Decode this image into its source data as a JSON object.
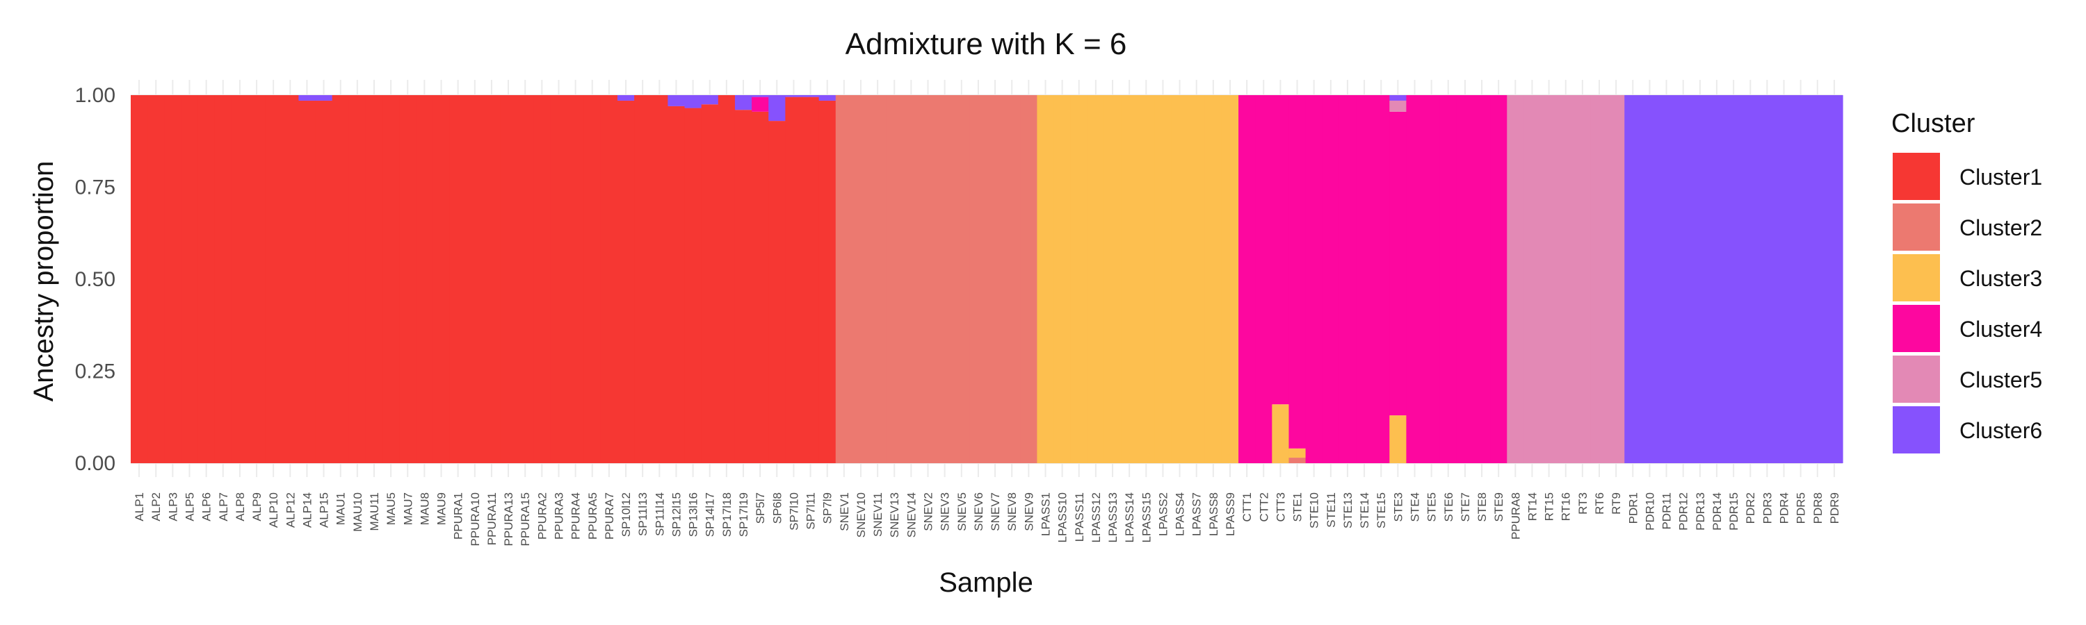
{
  "chart_data": {
    "type": "bar",
    "stacked": true,
    "title": "Admixture with K = 6",
    "xlabel": "Sample",
    "ylabel": "Ancestry proportion",
    "ylim": [
      0,
      1
    ],
    "yticks": [
      "0.00",
      "0.25",
      "0.50",
      "0.75",
      "1.00"
    ],
    "grid": true,
    "legend": {
      "title": "Cluster",
      "position": "right"
    },
    "colors": {
      "Cluster1": "#F63733",
      "Cluster2": "#EC7970",
      "Cluster3": "#FDBF4F",
      "Cluster4": "#FD079F",
      "Cluster5": "#E389B5",
      "Cluster6": "#8652FD"
    },
    "series_order": [
      "Cluster1",
      "Cluster2",
      "Cluster3",
      "Cluster4",
      "Cluster5",
      "Cluster6"
    ],
    "categories": [
      "ALP1",
      "ALP2",
      "ALP3",
      "ALP5",
      "ALP6",
      "ALP7",
      "ALP8",
      "ALP9",
      "ALP10",
      "ALP12",
      "ALP14",
      "ALP15",
      "MAU1",
      "MAU10",
      "MAU11",
      "MAU5",
      "MAU7",
      "MAU8",
      "MAU9",
      "PPURA1",
      "PPURA10",
      "PPURA11",
      "PPURA13",
      "PPURA15",
      "PPURA2",
      "PPURA3",
      "PPURA4",
      "PPURA5",
      "PPURA7",
      "SP10l12",
      "SP11l13",
      "SP11l14",
      "SP12l15",
      "SP13l16",
      "SP14l17",
      "SP17l18",
      "SP17l19",
      "SP5l7",
      "SP6l8",
      "SP7l10",
      "SP7l11",
      "SP7l9",
      "SNEV1",
      "SNEV10",
      "SNEV11",
      "SNEV13",
      "SNEV14",
      "SNEV2",
      "SNEV3",
      "SNEV5",
      "SNEV6",
      "SNEV7",
      "SNEV8",
      "SNEV9",
      "LPASS1",
      "LPASS10",
      "LPASS11",
      "LPASS12",
      "LPASS13",
      "LPASS14",
      "LPASS15",
      "LPASS2",
      "LPASS4",
      "LPASS7",
      "LPASS8",
      "LPASS9",
      "CTT1",
      "CTT2",
      "CTT3",
      "STE1",
      "STE10",
      "STE11",
      "STE13",
      "STE14",
      "STE15",
      "STE3",
      "STE4",
      "STE5",
      "STE6",
      "STE7",
      "STE8",
      "STE9",
      "PPURA8",
      "RT14",
      "RT15",
      "RT16",
      "RT3",
      "RT6",
      "RT9",
      "PDR1",
      "PDR10",
      "PDR11",
      "PDR12",
      "PDR13",
      "PDR14",
      "PDR15",
      "PDR2",
      "PDR3",
      "PDR4",
      "PDR5",
      "PDR8",
      "PDR9"
    ],
    "samples": [
      {
        "id": "ALP1",
        "Cluster1": 1.0
      },
      {
        "id": "ALP2",
        "Cluster1": 1.0
      },
      {
        "id": "ALP3",
        "Cluster1": 1.0
      },
      {
        "id": "ALP5",
        "Cluster1": 1.0
      },
      {
        "id": "ALP6",
        "Cluster1": 1.0
      },
      {
        "id": "ALP7",
        "Cluster1": 1.0
      },
      {
        "id": "ALP8",
        "Cluster1": 1.0
      },
      {
        "id": "ALP9",
        "Cluster1": 1.0
      },
      {
        "id": "ALP10",
        "Cluster1": 1.0
      },
      {
        "id": "ALP12",
        "Cluster1": 1.0
      },
      {
        "id": "ALP14",
        "Cluster1": 0.985,
        "Cluster6": 0.015
      },
      {
        "id": "ALP15",
        "Cluster1": 0.985,
        "Cluster6": 0.015
      },
      {
        "id": "MAU1",
        "Cluster1": 1.0
      },
      {
        "id": "MAU10",
        "Cluster1": 1.0
      },
      {
        "id": "MAU11",
        "Cluster1": 1.0
      },
      {
        "id": "MAU5",
        "Cluster1": 1.0
      },
      {
        "id": "MAU7",
        "Cluster1": 1.0
      },
      {
        "id": "MAU8",
        "Cluster1": 1.0
      },
      {
        "id": "MAU9",
        "Cluster1": 1.0
      },
      {
        "id": "PPURA1",
        "Cluster1": 1.0
      },
      {
        "id": "PPURA10",
        "Cluster1": 1.0
      },
      {
        "id": "PPURA11",
        "Cluster1": 1.0
      },
      {
        "id": "PPURA13",
        "Cluster1": 1.0
      },
      {
        "id": "PPURA15",
        "Cluster1": 1.0
      },
      {
        "id": "PPURA2",
        "Cluster1": 1.0
      },
      {
        "id": "PPURA3",
        "Cluster1": 1.0
      },
      {
        "id": "PPURA4",
        "Cluster1": 1.0
      },
      {
        "id": "PPURA5",
        "Cluster1": 1.0
      },
      {
        "id": "PPURA7",
        "Cluster1": 1.0
      },
      {
        "id": "SP10l12",
        "Cluster1": 0.985,
        "Cluster6": 0.015
      },
      {
        "id": "SP11l13",
        "Cluster1": 1.0
      },
      {
        "id": "SP11l14",
        "Cluster1": 1.0
      },
      {
        "id": "SP12l15",
        "Cluster1": 0.97,
        "Cluster6": 0.03
      },
      {
        "id": "SP13l16",
        "Cluster1": 0.965,
        "Cluster6": 0.035
      },
      {
        "id": "SP14l17",
        "Cluster1": 0.975,
        "Cluster6": 0.025
      },
      {
        "id": "SP17l18",
        "Cluster1": 1.0
      },
      {
        "id": "SP17l19",
        "Cluster1": 0.96,
        "Cluster6": 0.04
      },
      {
        "id": "SP5l7",
        "Cluster1": 0.955,
        "Cluster4": 0.04,
        "Cluster6": 0.005
      },
      {
        "id": "SP6l8",
        "Cluster1": 0.93,
        "Cluster6": 0.07
      },
      {
        "id": "SP7l10",
        "Cluster1": 0.995,
        "Cluster6": 0.005
      },
      {
        "id": "SP7l11",
        "Cluster1": 0.995,
        "Cluster6": 0.005
      },
      {
        "id": "SP7l9",
        "Cluster1": 0.985,
        "Cluster6": 0.015
      },
      {
        "id": "SNEV1",
        "Cluster2": 1.0
      },
      {
        "id": "SNEV10",
        "Cluster2": 1.0
      },
      {
        "id": "SNEV11",
        "Cluster2": 1.0
      },
      {
        "id": "SNEV13",
        "Cluster2": 1.0
      },
      {
        "id": "SNEV14",
        "Cluster2": 1.0
      },
      {
        "id": "SNEV2",
        "Cluster2": 1.0
      },
      {
        "id": "SNEV3",
        "Cluster2": 1.0
      },
      {
        "id": "SNEV5",
        "Cluster2": 1.0
      },
      {
        "id": "SNEV6",
        "Cluster2": 1.0
      },
      {
        "id": "SNEV7",
        "Cluster2": 1.0
      },
      {
        "id": "SNEV8",
        "Cluster2": 1.0
      },
      {
        "id": "SNEV9",
        "Cluster2": 1.0
      },
      {
        "id": "LPASS1",
        "Cluster3": 1.0
      },
      {
        "id": "LPASS10",
        "Cluster3": 1.0
      },
      {
        "id": "LPASS11",
        "Cluster3": 1.0
      },
      {
        "id": "LPASS12",
        "Cluster3": 1.0
      },
      {
        "id": "LPASS13",
        "Cluster3": 1.0
      },
      {
        "id": "LPASS14",
        "Cluster3": 1.0
      },
      {
        "id": "LPASS15",
        "Cluster3": 1.0
      },
      {
        "id": "LPASS2",
        "Cluster3": 1.0
      },
      {
        "id": "LPASS4",
        "Cluster3": 1.0
      },
      {
        "id": "LPASS7",
        "Cluster3": 1.0
      },
      {
        "id": "LPASS8",
        "Cluster3": 1.0
      },
      {
        "id": "LPASS9",
        "Cluster3": 1.0
      },
      {
        "id": "CTT1",
        "Cluster4": 1.0
      },
      {
        "id": "CTT2",
        "Cluster4": 1.0
      },
      {
        "id": "CTT3",
        "Cluster4": 0.84,
        "Cluster3": 0.16
      },
      {
        "id": "STE1",
        "Cluster4": 0.96,
        "Cluster3": 0.025,
        "Cluster2": 0.015
      },
      {
        "id": "STE10",
        "Cluster4": 1.0
      },
      {
        "id": "STE11",
        "Cluster4": 1.0
      },
      {
        "id": "STE13",
        "Cluster4": 1.0
      },
      {
        "id": "STE14",
        "Cluster4": 1.0
      },
      {
        "id": "STE15",
        "Cluster4": 1.0
      },
      {
        "id": "STE3",
        "Cluster6": 0.015,
        "Cluster5": 0.03,
        "Cluster4": 0.825,
        "Cluster3": 0.13
      },
      {
        "id": "STE4",
        "Cluster4": 1.0
      },
      {
        "id": "STE5",
        "Cluster4": 1.0
      },
      {
        "id": "STE6",
        "Cluster4": 1.0
      },
      {
        "id": "STE7",
        "Cluster4": 1.0
      },
      {
        "id": "STE8",
        "Cluster4": 1.0
      },
      {
        "id": "STE9",
        "Cluster4": 1.0
      },
      {
        "id": "PPURA8",
        "Cluster5": 1.0
      },
      {
        "id": "RT14",
        "Cluster5": 1.0
      },
      {
        "id": "RT15",
        "Cluster5": 1.0
      },
      {
        "id": "RT16",
        "Cluster5": 1.0
      },
      {
        "id": "RT3",
        "Cluster5": 1.0
      },
      {
        "id": "RT6",
        "Cluster5": 1.0
      },
      {
        "id": "RT9",
        "Cluster5": 1.0
      },
      {
        "id": "PDR1",
        "Cluster6": 1.0
      },
      {
        "id": "PDR10",
        "Cluster6": 1.0
      },
      {
        "id": "PDR11",
        "Cluster6": 1.0
      },
      {
        "id": "PDR12",
        "Cluster6": 1.0
      },
      {
        "id": "PDR13",
        "Cluster6": 1.0
      },
      {
        "id": "PDR14",
        "Cluster6": 1.0
      },
      {
        "id": "PDR15",
        "Cluster6": 1.0
      },
      {
        "id": "PDR2",
        "Cluster6": 1.0
      },
      {
        "id": "PDR3",
        "Cluster6": 1.0
      },
      {
        "id": "PDR4",
        "Cluster6": 1.0
      },
      {
        "id": "PDR5",
        "Cluster6": 1.0
      },
      {
        "id": "PDR8",
        "Cluster6": 1.0
      },
      {
        "id": "PDR9",
        "Cluster6": 1.0
      }
    ]
  }
}
